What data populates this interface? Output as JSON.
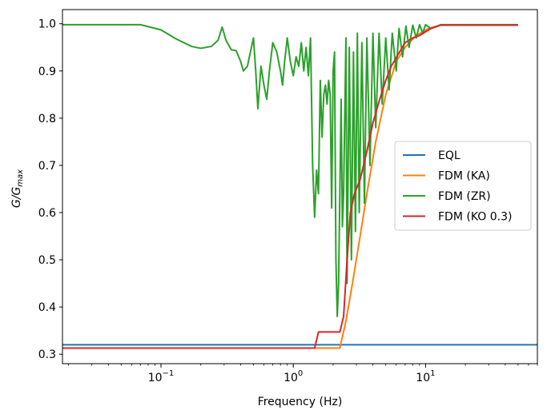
{
  "chart_data": {
    "type": "line",
    "xlabel": "Frequency (Hz)",
    "ylabel": "G/G",
    "ylabel_sub": "max",
    "xscale": "log",
    "xlim": [
      0.018,
      70
    ],
    "ylim": [
      0.28,
      1.03
    ],
    "x_ticks": [
      {
        "value": 0.1,
        "base": "10",
        "exp": "−1"
      },
      {
        "value": 1,
        "base": "10",
        "exp": "0"
      },
      {
        "value": 10,
        "base": "10",
        "exp": "1"
      }
    ],
    "y_ticks": [
      {
        "value": 0.3,
        "label": "0.3"
      },
      {
        "value": 0.4,
        "label": "0.4"
      },
      {
        "value": 0.5,
        "label": "0.5"
      },
      {
        "value": 0.6,
        "label": "0.6"
      },
      {
        "value": 0.7,
        "label": "0.7"
      },
      {
        "value": 0.8,
        "label": "0.8"
      },
      {
        "value": 0.9,
        "label": "0.9"
      },
      {
        "value": 1.0,
        "label": "1.0"
      }
    ],
    "grid": false,
    "legend_position": "center-right",
    "series": [
      {
        "name": "EQL",
        "color": "#1f77b4",
        "points": [
          [
            0.018,
            0.32
          ],
          [
            70,
            0.32
          ]
        ]
      },
      {
        "name": "FDM (KA)",
        "color": "#ff7f0e",
        "points": [
          [
            0.018,
            0.313
          ],
          [
            2.25,
            0.313
          ],
          [
            2.5,
            0.37
          ],
          [
            2.8,
            0.45
          ],
          [
            3.2,
            0.55
          ],
          [
            3.6,
            0.64
          ],
          [
            4.2,
            0.75
          ],
          [
            5.0,
            0.85
          ],
          [
            6.0,
            0.92
          ],
          [
            7.0,
            0.95
          ],
          [
            8.5,
            0.975
          ],
          [
            10.5,
            0.99
          ],
          [
            13,
            0.997
          ],
          [
            50,
            0.997
          ]
        ]
      },
      {
        "name": "FDM (ZR)",
        "color": "#2ca02c",
        "points": [
          [
            0.018,
            0.998
          ],
          [
            0.07,
            0.998
          ],
          [
            0.1,
            0.987
          ],
          [
            0.13,
            0.968
          ],
          [
            0.17,
            0.952
          ],
          [
            0.2,
            0.948
          ],
          [
            0.24,
            0.952
          ],
          [
            0.27,
            0.965
          ],
          [
            0.29,
            0.993
          ],
          [
            0.31,
            0.965
          ],
          [
            0.34,
            0.945
          ],
          [
            0.37,
            0.943
          ],
          [
            0.4,
            0.92
          ],
          [
            0.42,
            0.9
          ],
          [
            0.45,
            0.91
          ],
          [
            0.47,
            0.935
          ],
          [
            0.5,
            0.97
          ],
          [
            0.52,
            0.9
          ],
          [
            0.54,
            0.82
          ],
          [
            0.57,
            0.91
          ],
          [
            0.6,
            0.87
          ],
          [
            0.63,
            0.84
          ],
          [
            0.66,
            0.9
          ],
          [
            0.7,
            0.96
          ],
          [
            0.75,
            0.94
          ],
          [
            0.8,
            0.9
          ],
          [
            0.83,
            0.87
          ],
          [
            0.86,
            0.92
          ],
          [
            0.9,
            0.97
          ],
          [
            0.95,
            0.92
          ],
          [
            1.0,
            0.89
          ],
          [
            1.05,
            0.93
          ],
          [
            1.1,
            0.91
          ],
          [
            1.15,
            0.96
          ],
          [
            1.2,
            0.9
          ],
          [
            1.25,
            0.95
          ],
          [
            1.3,
            0.89
          ],
          [
            1.35,
            0.97
          ],
          [
            1.4,
            0.7
          ],
          [
            1.45,
            0.59
          ],
          [
            1.5,
            0.69
          ],
          [
            1.55,
            0.64
          ],
          [
            1.6,
            0.88
          ],
          [
            1.65,
            0.76
          ],
          [
            1.7,
            0.85
          ],
          [
            1.75,
            0.87
          ],
          [
            1.8,
            0.83
          ],
          [
            1.85,
            0.88
          ],
          [
            1.9,
            0.85
          ],
          [
            1.95,
            0.61
          ],
          [
            2.0,
            0.9
          ],
          [
            2.05,
            0.94
          ],
          [
            2.1,
            0.5
          ],
          [
            2.15,
            0.38
          ],
          [
            2.2,
            0.45
          ],
          [
            2.3,
            0.84
          ],
          [
            2.35,
            0.57
          ],
          [
            2.4,
            0.64
          ],
          [
            2.5,
            0.97
          ],
          [
            2.55,
            0.45
          ],
          [
            2.65,
            0.95
          ],
          [
            2.75,
            0.5
          ],
          [
            2.85,
            0.94
          ],
          [
            2.95,
            0.56
          ],
          [
            3.05,
            0.98
          ],
          [
            3.15,
            0.6
          ],
          [
            3.3,
            0.96
          ],
          [
            3.45,
            0.62
          ],
          [
            3.6,
            0.97
          ],
          [
            3.8,
            0.7
          ],
          [
            4.0,
            0.98
          ],
          [
            4.2,
            0.78
          ],
          [
            4.45,
            0.98
          ],
          [
            4.7,
            0.83
          ],
          [
            5.0,
            0.97
          ],
          [
            5.3,
            0.86
          ],
          [
            5.6,
            0.98
          ],
          [
            6.0,
            0.9
          ],
          [
            6.3,
            0.99
          ],
          [
            6.7,
            0.93
          ],
          [
            7.1,
            0.995
          ],
          [
            7.5,
            0.95
          ],
          [
            8.0,
            0.997
          ],
          [
            8.5,
            0.97
          ],
          [
            9.0,
            0.998
          ],
          [
            9.5,
            0.98
          ],
          [
            10.0,
            0.998
          ],
          [
            11,
            0.99
          ],
          [
            13,
            0.998
          ],
          [
            50,
            0.998
          ]
        ]
      },
      {
        "name": "FDM (KO 0.3)",
        "color": "#d62728",
        "points": [
          [
            0.018,
            0.313
          ],
          [
            1.45,
            0.313
          ],
          [
            1.55,
            0.347
          ],
          [
            2.25,
            0.347
          ],
          [
            2.4,
            0.38
          ],
          [
            2.55,
            0.5
          ],
          [
            2.7,
            0.6
          ],
          [
            2.9,
            0.64
          ],
          [
            3.2,
            0.67
          ],
          [
            3.6,
            0.73
          ],
          [
            4.0,
            0.79
          ],
          [
            4.5,
            0.84
          ],
          [
            5.0,
            0.88
          ],
          [
            5.5,
            0.91
          ],
          [
            6.2,
            0.935
          ],
          [
            7.0,
            0.96
          ],
          [
            8.0,
            0.97
          ],
          [
            9.0,
            0.975
          ],
          [
            10.0,
            0.983
          ],
          [
            11,
            0.99
          ],
          [
            13,
            0.997
          ],
          [
            50,
            0.997
          ]
        ]
      }
    ]
  }
}
